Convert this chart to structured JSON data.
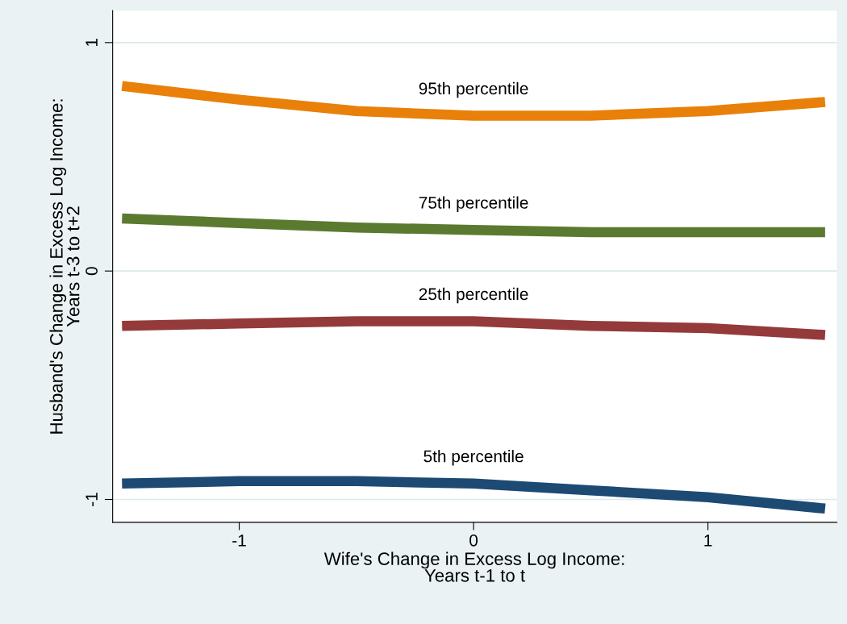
{
  "chart_data": {
    "type": "line",
    "xlabel": "Wife's Change in Excess Log Income:\nYears t-1 to t",
    "ylabel": "Husband's Change in Excess Log Income:\nYears t-3 to t+2",
    "x": [
      -1.5,
      -1,
      -0.5,
      0,
      0.5,
      1,
      1.5
    ],
    "series": [
      {
        "name": "95th percentile",
        "color": "#e8800a",
        "values": [
          0.81,
          0.75,
          0.7,
          0.68,
          0.68,
          0.7,
          0.74
        ]
      },
      {
        "name": "75th percentile",
        "color": "#5a7a30",
        "values": [
          0.23,
          0.21,
          0.19,
          0.18,
          0.17,
          0.17,
          0.17
        ]
      },
      {
        "name": "25th percentile",
        "color": "#943a3a",
        "values": [
          -0.24,
          -0.23,
          -0.22,
          -0.22,
          -0.24,
          -0.25,
          -0.28
        ]
      },
      {
        "name": "5th percentile",
        "color": "#1d4a73",
        "values": [
          -0.93,
          -0.92,
          -0.92,
          -0.93,
          -0.96,
          -0.99,
          -1.04
        ]
      }
    ],
    "xlim": [
      -1.54,
      1.55
    ],
    "ylim": [
      -1.1,
      1.14
    ],
    "xticks": [
      -1,
      0,
      1
    ],
    "yticks": [
      -1,
      0,
      1
    ],
    "grid": "y",
    "marker": "none",
    "line_style": "solid"
  }
}
